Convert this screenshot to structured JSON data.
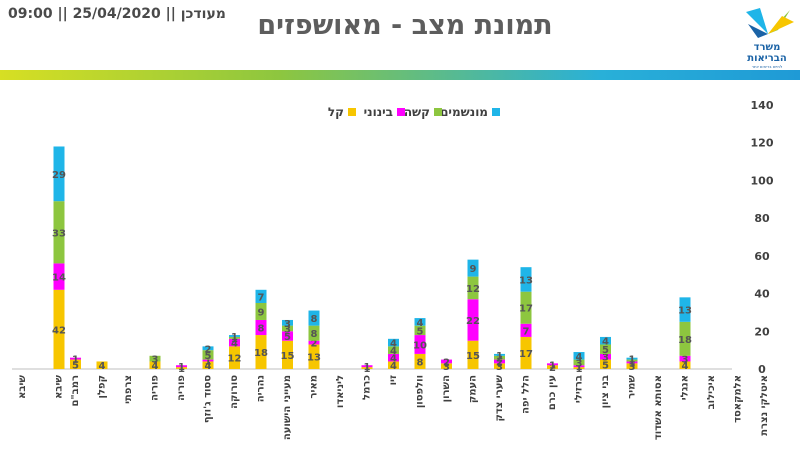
{
  "header": {
    "updated_text": "מעודכן || 25/04/2020 || 09:00",
    "title": "תמונת מצב - מאושפזים",
    "logo_line1": "משרד",
    "logo_line2": "הבריאות",
    "logo_tagline": "לחיים בריאים יותר"
  },
  "colors": {
    "band": [
      "#d7df23",
      "#29b0d8"
    ],
    "logo_blue": "#1b63a6",
    "logo_green": "#8dc63f",
    "logo_yellow": "#f7c600"
  },
  "chart_data": {
    "type": "bar",
    "stacked": true,
    "categories": [
      "שיבא",
      "שיבא",
      "רמב\"ם",
      "קפלן",
      "צרפתי",
      "פוריה",
      "פוריה",
      "ססוד ג'וזף",
      "סורוקה",
      "נהריה",
      "מעייני הישועה",
      "מאיר",
      "ליניאדו",
      "כרמל",
      "זיו",
      "וולפסון",
      "השרון",
      "העמק",
      "שערי צדק",
      "הלל יפה",
      "עין כרם",
      "ברזילי",
      "בני ציון",
      "שמיר",
      "אסותא אשדוד",
      "אנגלי",
      "איכילוב",
      "אלמקאסד",
      "איטלקי נצרת"
    ],
    "series": [
      {
        "name": "קל",
        "color": "#f7c600",
        "values": [
          0,
          42,
          5,
          4,
          0,
          4,
          1,
          4,
          12,
          18,
          15,
          13,
          0,
          1,
          4,
          8,
          3,
          15,
          3,
          17,
          2,
          1,
          5,
          3,
          0,
          4,
          0,
          0,
          0
        ]
      },
      {
        "name": "בינוני",
        "color": "#ff00ff",
        "values": [
          0,
          14,
          1,
          0,
          0,
          0,
          1,
          1,
          4,
          8,
          5,
          2,
          0,
          1,
          4,
          10,
          2,
          22,
          2,
          7,
          1,
          1,
          3,
          1,
          0,
          3,
          0,
          0,
          0
        ]
      },
      {
        "name": "קשה",
        "color": "#8dc63f",
        "values": [
          0,
          33,
          0,
          0,
          0,
          3,
          0,
          5,
          1,
          9,
          3,
          8,
          0,
          0,
          4,
          5,
          0,
          12,
          2,
          17,
          0,
          3,
          5,
          1,
          0,
          18,
          0,
          0,
          0
        ]
      },
      {
        "name": "מונשמים",
        "color": "#1fb5e8",
        "values": [
          0,
          29,
          0,
          0,
          0,
          0,
          0,
          2,
          1,
          7,
          3,
          8,
          0,
          0,
          4,
          4,
          0,
          9,
          1,
          13,
          0,
          4,
          4,
          1,
          0,
          13,
          0,
          0,
          0
        ]
      }
    ],
    "y_ticks": [
      "0",
      "20",
      "40",
      "60",
      "80",
      "100",
      "120",
      "140"
    ],
    "ylim": [
      0,
      140
    ],
    "grid": false,
    "legend_position": "top-center",
    "y_axis_side": "right"
  }
}
